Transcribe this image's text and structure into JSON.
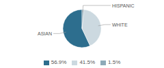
{
  "chart_data": {
    "type": "pie",
    "categories": [
      "ASIAN",
      "WHITE",
      "HISPANIC"
    ],
    "values": [
      56.9,
      41.5,
      1.5
    ],
    "value_labels": [
      "56.9%",
      "41.5%",
      "1.5%"
    ],
    "colors": [
      "#2d6e8e",
      "#ccd9e0",
      "#8faab8"
    ],
    "legend": "bottom"
  }
}
